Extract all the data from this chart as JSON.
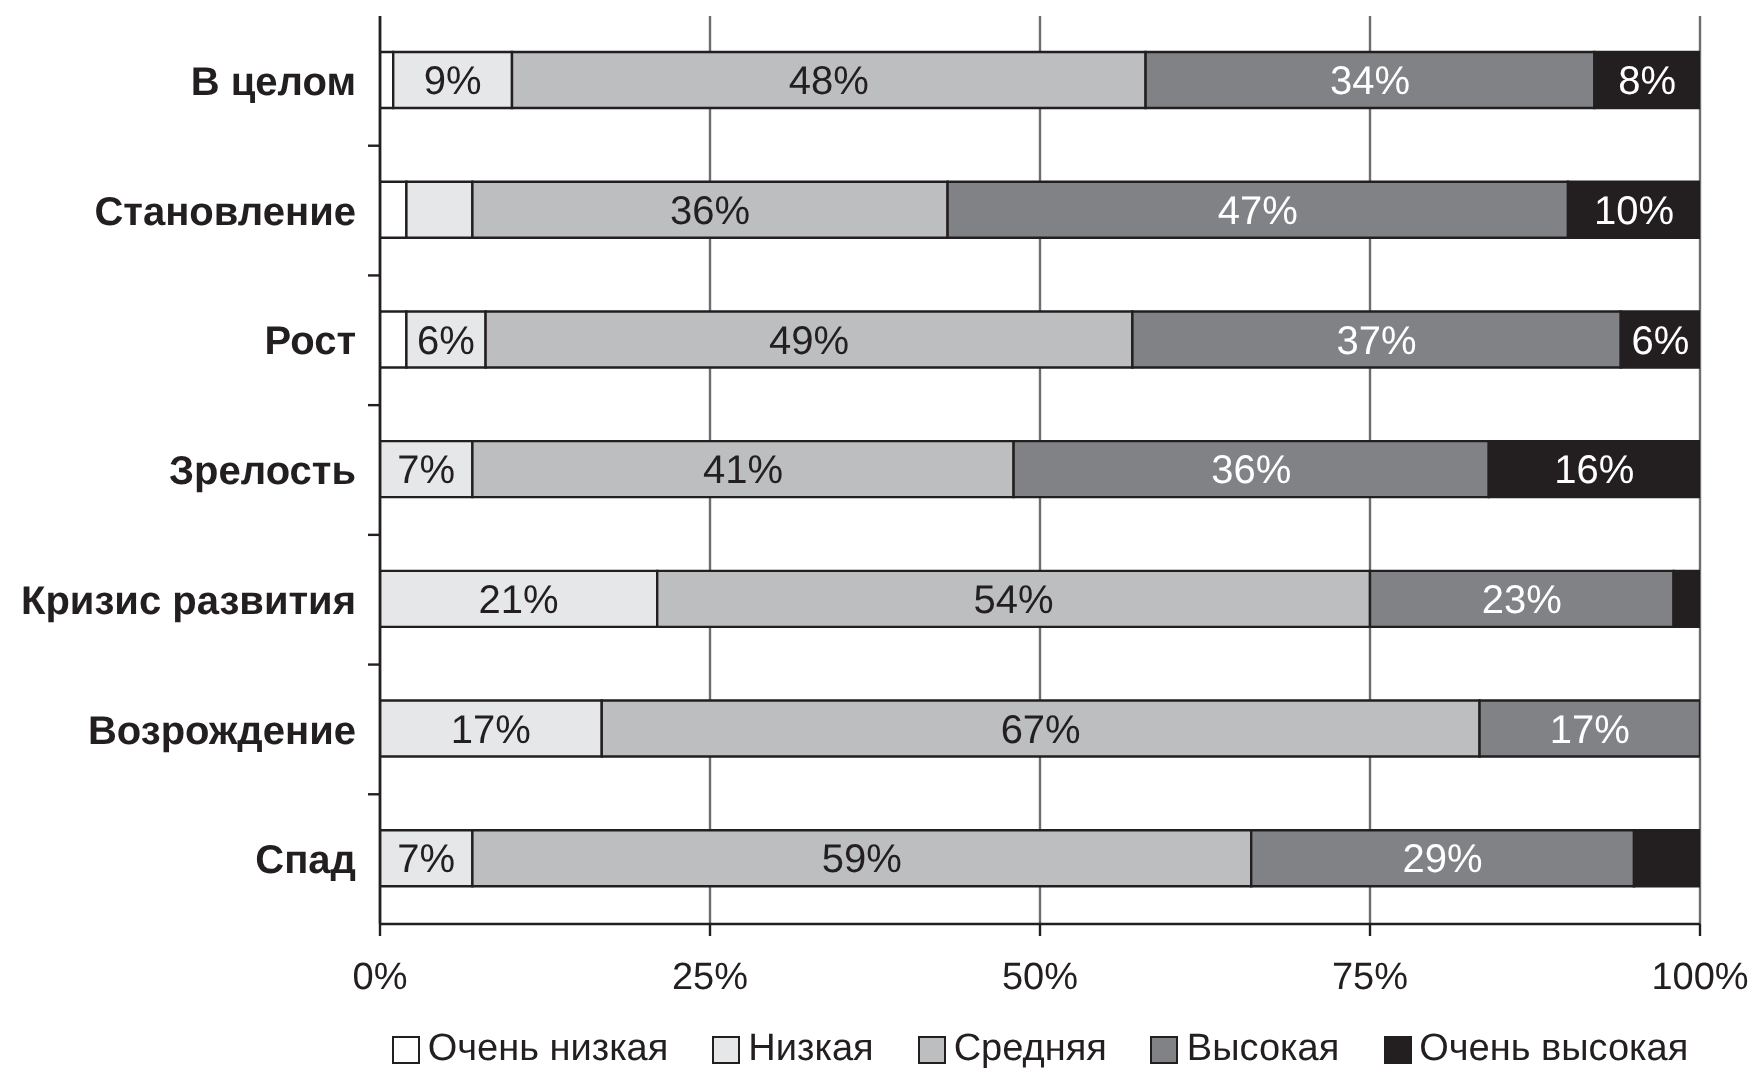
{
  "chart_data": {
    "type": "bar",
    "orientation": "horizontal",
    "stacked": true,
    "categories": [
      "В целом",
      "Становление",
      "Рост",
      "Зрелость",
      "Кризис развития",
      "Возрождение",
      "Спад"
    ],
    "series": [
      {
        "name": "Очень низкая",
        "color": "#ffffff",
        "values": [
          1,
          2,
          2,
          0,
          0,
          0,
          0
        ]
      },
      {
        "name": "Низкая",
        "color": "#e6e7e8",
        "values": [
          9,
          5,
          6,
          7,
          21,
          16.8,
          7
        ],
        "value_labels": [
          "9%",
          null,
          "6%",
          "7%",
          "21%",
          "17%",
          "7%"
        ]
      },
      {
        "name": "Средняя",
        "color": "#bcbec0",
        "values": [
          48,
          36,
          49,
          41,
          54,
          66.5,
          59
        ],
        "value_labels": [
          "48%",
          "36%",
          "49%",
          "41%",
          "54%",
          "67%",
          "59%"
        ]
      },
      {
        "name": "Высокая",
        "color": "#808285",
        "values": [
          34,
          47,
          37,
          36,
          23,
          16.7,
          29
        ],
        "value_labels": [
          "34%",
          "47%",
          "37%",
          "36%",
          "23%",
          "17%",
          "29%"
        ]
      },
      {
        "name": "Очень высокая",
        "color": "#231f20",
        "values": [
          8,
          10,
          6,
          16,
          2,
          0,
          5
        ],
        "value_labels": [
          "8%",
          "10%",
          "6%",
          "16%",
          null,
          null,
          null
        ]
      }
    ],
    "xlim": [
      0,
      100
    ],
    "xticks": [
      {
        "value": 0,
        "label": "0%"
      },
      {
        "value": 25,
        "label": "25%"
      },
      {
        "value": 50,
        "label": "50%"
      },
      {
        "value": 75,
        "label": "75%"
      },
      {
        "value": 100,
        "label": "100%"
      }
    ],
    "grid": "x",
    "legend": "bottom"
  }
}
